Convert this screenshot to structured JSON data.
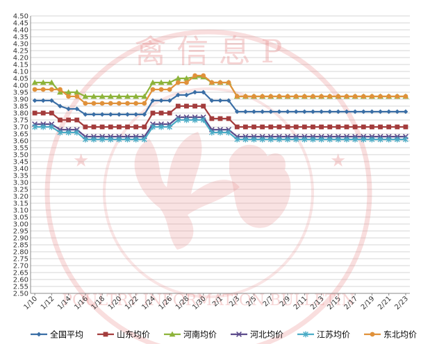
{
  "chart_data": {
    "type": "line",
    "title": "",
    "xlabel": "",
    "ylabel": "",
    "ylim": [
      2.5,
      4.5
    ],
    "ytick_step": 0.05,
    "grid": true,
    "legend_position": "bottom",
    "x": [
      "1/10",
      "1/11",
      "1/12",
      "1/13",
      "1/14",
      "1/15",
      "1/16",
      "1/17",
      "1/18",
      "1/19",
      "1/20",
      "1/21",
      "1/22",
      "1/23",
      "1/24",
      "1/25",
      "1/26",
      "1/27",
      "1/28",
      "1/29",
      "1/30",
      "1/31",
      "2/1",
      "2/2",
      "2/3",
      "2/4",
      "2/5",
      "2/6",
      "2/7",
      "2/8",
      "2/9",
      "2/10",
      "2/11",
      "2/12",
      "2/13",
      "2/14",
      "2/15",
      "2/16",
      "2/17",
      "2/18",
      "2/19",
      "2/20",
      "2/21",
      "2/22",
      "2/23"
    ],
    "x_tick_labels": [
      "1/10",
      "1/12",
      "1/14",
      "1/16",
      "1/18",
      "1/20",
      "1/22",
      "1/24",
      "1/26",
      "1/28",
      "1/30",
      "2/1",
      "2/3",
      "2/5",
      "2/7",
      "2/9",
      "2/11",
      "2/13",
      "2/15",
      "2/17",
      "2/19",
      "2/21",
      "2/23"
    ],
    "series": [
      {
        "name": "全国平均",
        "color": "#3a6ea5",
        "marker": "diamond",
        "values": [
          3.89,
          3.89,
          3.89,
          3.85,
          3.83,
          3.83,
          3.79,
          3.79,
          3.79,
          3.79,
          3.79,
          3.79,
          3.79,
          3.79,
          3.89,
          3.89,
          3.89,
          3.93,
          3.93,
          3.95,
          3.95,
          3.89,
          3.89,
          3.89,
          3.81,
          3.81,
          3.81,
          3.81,
          3.81,
          3.81,
          3.81,
          3.81,
          3.81,
          3.81,
          3.81,
          3.81,
          3.81,
          3.81,
          3.81,
          3.81,
          3.81,
          3.81,
          3.81,
          3.81,
          3.81
        ]
      },
      {
        "name": "山东均价",
        "color": "#a33c3c",
        "marker": "square",
        "values": [
          3.8,
          3.8,
          3.8,
          3.75,
          3.75,
          3.75,
          3.7,
          3.7,
          3.7,
          3.7,
          3.7,
          3.7,
          3.7,
          3.7,
          3.8,
          3.8,
          3.8,
          3.85,
          3.85,
          3.85,
          3.85,
          3.76,
          3.76,
          3.76,
          3.7,
          3.7,
          3.7,
          3.7,
          3.7,
          3.7,
          3.7,
          3.7,
          3.7,
          3.7,
          3.7,
          3.7,
          3.7,
          3.7,
          3.7,
          3.7,
          3.7,
          3.7,
          3.7,
          3.7,
          3.7
        ]
      },
      {
        "name": "河南均价",
        "color": "#8db33a",
        "marker": "triangle",
        "values": [
          4.02,
          4.02,
          4.02,
          3.95,
          3.95,
          3.95,
          3.92,
          3.92,
          3.92,
          3.92,
          3.92,
          3.92,
          3.92,
          3.92,
          4.02,
          4.02,
          4.02,
          4.05,
          4.05,
          4.06,
          4.06,
          4.02,
          4.02,
          4.02,
          3.92,
          3.92,
          3.92,
          3.92,
          3.92,
          3.92,
          3.92,
          3.92,
          3.92,
          3.92,
          3.92,
          3.92,
          3.92,
          3.92,
          3.92,
          3.92,
          3.92,
          3.92,
          3.92,
          3.92,
          3.92
        ]
      },
      {
        "name": "河北均价",
        "color": "#5b4a8a",
        "marker": "x",
        "values": [
          3.72,
          3.72,
          3.72,
          3.68,
          3.68,
          3.68,
          3.63,
          3.63,
          3.63,
          3.63,
          3.63,
          3.63,
          3.63,
          3.63,
          3.72,
          3.72,
          3.72,
          3.77,
          3.77,
          3.77,
          3.77,
          3.68,
          3.68,
          3.68,
          3.63,
          3.63,
          3.63,
          3.63,
          3.63,
          3.63,
          3.63,
          3.63,
          3.63,
          3.63,
          3.63,
          3.63,
          3.63,
          3.63,
          3.63,
          3.63,
          3.63,
          3.63,
          3.63,
          3.63,
          3.63
        ]
      },
      {
        "name": "江苏均价",
        "color": "#4bacc6",
        "marker": "asterisk",
        "values": [
          3.7,
          3.7,
          3.7,
          3.66,
          3.66,
          3.66,
          3.61,
          3.61,
          3.61,
          3.61,
          3.61,
          3.61,
          3.61,
          3.61,
          3.7,
          3.7,
          3.7,
          3.75,
          3.75,
          3.75,
          3.75,
          3.66,
          3.66,
          3.66,
          3.61,
          3.61,
          3.61,
          3.61,
          3.61,
          3.61,
          3.61,
          3.61,
          3.61,
          3.61,
          3.61,
          3.61,
          3.61,
          3.61,
          3.61,
          3.61,
          3.61,
          3.61,
          3.61,
          3.61,
          3.61
        ]
      },
      {
        "name": "东北均价",
        "color": "#e0913a",
        "marker": "circle",
        "values": [
          3.97,
          3.97,
          3.97,
          3.97,
          3.92,
          3.92,
          3.87,
          3.87,
          3.87,
          3.87,
          3.87,
          3.87,
          3.87,
          3.87,
          3.97,
          3.97,
          3.97,
          4.02,
          4.02,
          4.07,
          4.07,
          4.02,
          4.02,
          4.02,
          3.92,
          3.92,
          3.92,
          3.92,
          3.92,
          3.92,
          3.92,
          3.92,
          3.92,
          3.92,
          3.92,
          3.92,
          3.92,
          3.92,
          3.92,
          3.92,
          3.92,
          3.92,
          3.92,
          3.92,
          3.92
        ]
      }
    ]
  },
  "watermark": {
    "top_text": "禽 信 息 P",
    "bottom_text": "POULTRY INFORMATION BULLETIN",
    "color": "#e88a8a"
  }
}
